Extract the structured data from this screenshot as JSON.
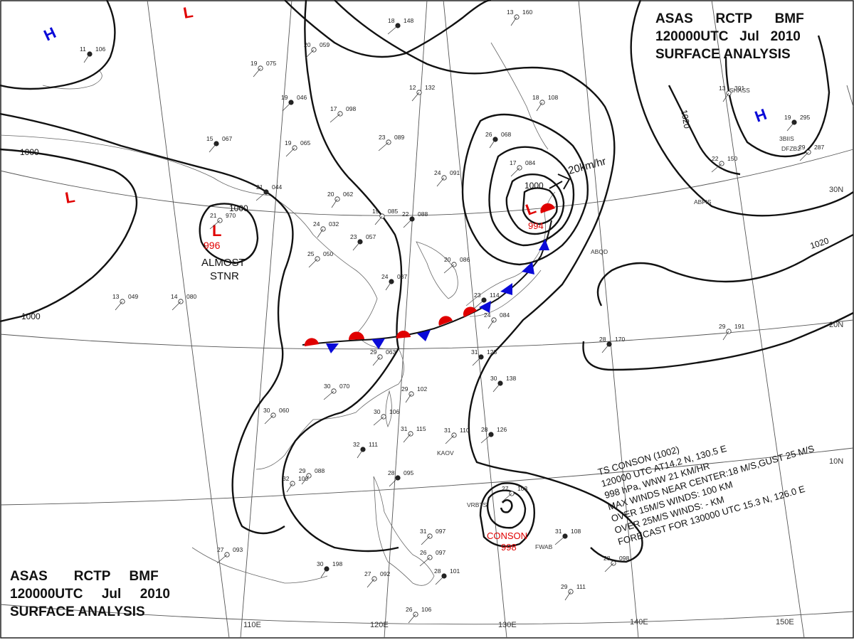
{
  "header": {
    "line1_parts": [
      "ASAS",
      "RCTP",
      "BMF"
    ],
    "line2_parts": [
      "120000UTC",
      "Jul",
      "2010"
    ],
    "line3": "SURFACE ANALYSIS"
  },
  "isobar_labels": {
    "l1000_a": "1000",
    "l1000_b": "1000",
    "l1000_c": "1000",
    "l1000_d": "1000",
    "l1020_a": "1020",
    "l1020_b": "1020"
  },
  "pressure_centers": {
    "high_nw": "H",
    "high_ne": "H",
    "low_top": "L",
    "low_west": "L",
    "low_inland": "L",
    "low_inland_value": "996",
    "low_inland_note_1": "ALMOST",
    "low_inland_note_2": "STNR",
    "low_east": "L",
    "low_east_value": "994",
    "low_east_motion": "20km/hr",
    "typhoon_name": "CONSON",
    "typhoon_value": "998"
  },
  "longitude_labels": [
    "110E",
    "120E",
    "130E",
    "140E",
    "150E"
  ],
  "latitude_labels": [
    "30N",
    "20N",
    "10N"
  ],
  "typhoon_info": {
    "line1": "TS  CONSON  (1002)",
    "line2": "120000 UTC  AT14.2 N, 130.5 E",
    "line3": "998 hPa, WNW  21 KM/HR",
    "line4": "MAX WINDS NEAR CENTER:18 M/S,GUST 25 M/S",
    "line5": "OVER 15M/S WINDS: 100 KM",
    "line6": "OVER 25M/S WINDS: - KM",
    "line7": "FORECAST FOR 130000 UTC 15.3 N, 126.0 E"
  },
  "station_plots": [
    {
      "t": "11",
      "p": "106"
    },
    {
      "t": "19",
      "p": "075"
    },
    {
      "t": "20",
      "p": "059"
    },
    {
      "t": "18",
      "p": "148"
    },
    {
      "t": "13",
      "p": "160"
    },
    {
      "t": "12",
      "p": "132"
    },
    {
      "t": "19",
      "p": "046"
    },
    {
      "t": "17",
      "p": "098"
    },
    {
      "t": "18",
      "p": "108"
    },
    {
      "t": "15",
      "p": "067"
    },
    {
      "t": "19",
      "p": "065"
    },
    {
      "t": "23",
      "p": "089"
    },
    {
      "t": "26",
      "p": "068"
    },
    {
      "t": "24",
      "p": "091"
    },
    {
      "t": "17",
      "p": "084"
    },
    {
      "t": "21",
      "p": "044"
    },
    {
      "t": "20",
      "p": "062"
    },
    {
      "t": "19",
      "p": "085"
    },
    {
      "t": "22",
      "p": "088"
    },
    {
      "t": "21",
      "p": "970"
    },
    {
      "t": "24",
      "p": "032"
    },
    {
      "t": "23",
      "p": "057"
    },
    {
      "t": "25",
      "p": "050"
    },
    {
      "t": "20",
      "p": "086"
    },
    {
      "t": "24",
      "p": "087"
    },
    {
      "t": "13",
      "p": "049"
    },
    {
      "t": "14",
      "p": "080"
    },
    {
      "t": "23",
      "p": "114"
    },
    {
      "t": "24",
      "p": "084"
    },
    {
      "t": "29",
      "p": "063"
    },
    {
      "t": "31",
      "p": "123"
    },
    {
      "t": "30",
      "p": "070"
    },
    {
      "t": "29",
      "p": "102"
    },
    {
      "t": "30",
      "p": "138"
    },
    {
      "t": "30",
      "p": "060"
    },
    {
      "t": "30",
      "p": "106"
    },
    {
      "t": "32",
      "p": "111"
    },
    {
      "t": "31",
      "p": "115"
    },
    {
      "t": "31",
      "p": "110"
    },
    {
      "t": "28",
      "p": "126"
    },
    {
      "t": "32",
      "p": "100"
    },
    {
      "t": "29",
      "p": "088"
    },
    {
      "t": "28",
      "p": "095"
    },
    {
      "t": "27",
      "p": "103"
    },
    {
      "t": "29",
      "p": "191"
    },
    {
      "t": "28",
      "p": "170"
    },
    {
      "t": "28",
      "p": "098"
    },
    {
      "t": "27",
      "p": "093"
    },
    {
      "t": "30",
      "p": "198"
    },
    {
      "t": "27",
      "p": "092"
    },
    {
      "t": "31",
      "p": "097"
    },
    {
      "t": "31",
      "p": "108"
    },
    {
      "t": "29",
      "p": "111"
    },
    {
      "t": "26",
      "p": "106"
    },
    {
      "t": "28",
      "p": "101"
    },
    {
      "t": "26",
      "p": "097"
    },
    {
      "t": "13",
      "p": "301"
    },
    {
      "t": "19",
      "p": "295"
    },
    {
      "t": "29",
      "p": "287"
    },
    {
      "t": "22",
      "p": "150"
    }
  ],
  "station_ids": [
    "KAOV",
    "VRBTS",
    "FWAB",
    "ABFIS",
    "SHASS",
    "DFZB2",
    "3BIIS",
    "ABQD"
  ]
}
